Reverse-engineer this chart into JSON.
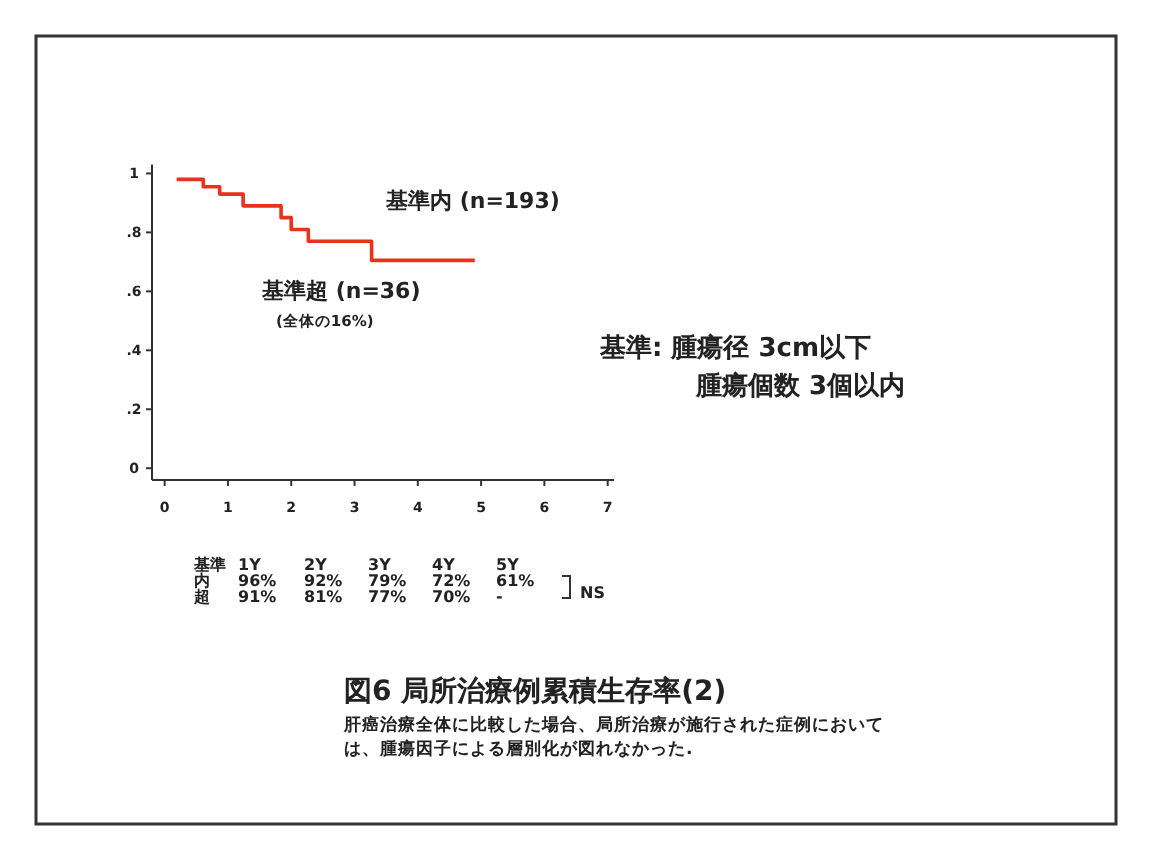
{
  "chart_data": {
    "type": "step",
    "title": "図6 局所治療例累積生存率(2)",
    "x": [
      0.19,
      0.61,
      0.87,
      1.24,
      1.84,
      2.0,
      2.27,
      3.27,
      4.9
    ],
    "values": [
      0.98,
      0.955,
      0.93,
      0.89,
      0.85,
      0.81,
      0.77,
      0.705,
      0.705
    ],
    "color": "#e8321e",
    "xlim": [
      -0.2,
      7.1
    ],
    "ylim": [
      -0.04,
      1.03
    ],
    "xticks": [
      0,
      1,
      2,
      3,
      4,
      5,
      6,
      7
    ],
    "yticks": [
      0,
      {
        "value": 0.2,
        "label": ".2"
      },
      {
        "value": 0.4,
        "label": ".4"
      },
      {
        "value": 0.6,
        "label": ".6"
      },
      {
        "value": 0.8,
        "label": ".8"
      },
      1
    ],
    "grid": false,
    "marker": "none",
    "annotations": [
      "基準内 (n=193)",
      "基準超 (n=36)",
      "(全体の16%)",
      "基準: 腫瘍径 3cm以下",
      "腫瘍個数 3個以内",
      "基準",
      "1Y",
      "2Y",
      "3Y",
      "4Y",
      "5Y",
      "内",
      "96%",
      "92%",
      "79%",
      "72%",
      "61%",
      "超",
      "91%",
      "81%",
      "77%",
      "70%",
      "-",
      "NS",
      "肝癌治療全体に比較した場合、局所治療が施行された症例においては、腫瘍因子による層別化が図れなかった."
    ]
  }
}
